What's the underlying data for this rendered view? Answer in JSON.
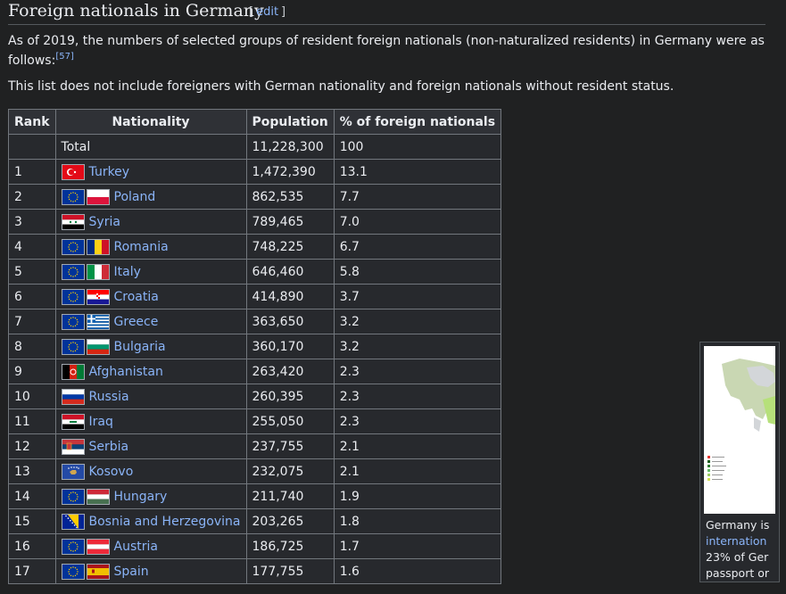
{
  "section": {
    "title": "Foreign nationals in Germany",
    "edit_open": "[",
    "edit_label": "edit",
    "edit_close": "]"
  },
  "intro": {
    "line1": "As of 2019, the numbers of selected groups of resident foreign nationals (non-naturalized residents) in Germany were as",
    "line2": "follows:",
    "ref": "[57]",
    "note": "This list does not include foreigners with German nationality and foreign nationals without resident status."
  },
  "table": {
    "headers": [
      "Rank",
      "Nationality",
      "Population",
      "% of foreign nationals"
    ],
    "total": {
      "rank": "",
      "label": "Total",
      "population": "11,228,300",
      "percent": "100"
    },
    "rows": [
      {
        "rank": "1",
        "country": "Turkey",
        "population": "1,472,390",
        "percent": "13.1",
        "eu": false,
        "flag": "turkey-flag-icon"
      },
      {
        "rank": "2",
        "country": "Poland",
        "population": "862,535",
        "percent": "7.7",
        "eu": true,
        "flag": "poland-flag-icon"
      },
      {
        "rank": "3",
        "country": "Syria",
        "population": "789,465",
        "percent": "7.0",
        "eu": false,
        "flag": "syria-flag-icon"
      },
      {
        "rank": "4",
        "country": "Romania",
        "population": "748,225",
        "percent": "6.7",
        "eu": true,
        "flag": "romania-flag-icon"
      },
      {
        "rank": "5",
        "country": "Italy",
        "population": "646,460",
        "percent": "5.8",
        "eu": true,
        "flag": "italy-flag-icon"
      },
      {
        "rank": "6",
        "country": "Croatia",
        "population": "414,890",
        "percent": "3.7",
        "eu": true,
        "flag": "croatia-flag-icon"
      },
      {
        "rank": "7",
        "country": "Greece",
        "population": "363,650",
        "percent": "3.2",
        "eu": true,
        "flag": "greece-flag-icon"
      },
      {
        "rank": "8",
        "country": "Bulgaria",
        "population": "360,170",
        "percent": "3.2",
        "eu": true,
        "flag": "bulgaria-flag-icon"
      },
      {
        "rank": "9",
        "country": "Afghanistan",
        "population": "263,420",
        "percent": "2.3",
        "eu": false,
        "flag": "afghanistan-flag-icon"
      },
      {
        "rank": "10",
        "country": "Russia",
        "population": "260,395",
        "percent": "2.3",
        "eu": false,
        "flag": "russia-flag-icon"
      },
      {
        "rank": "11",
        "country": "Iraq",
        "population": "255,050",
        "percent": "2.3",
        "eu": false,
        "flag": "iraq-flag-icon"
      },
      {
        "rank": "12",
        "country": "Serbia",
        "population": "237,755",
        "percent": "2.1",
        "eu": false,
        "flag": "serbia-flag-icon"
      },
      {
        "rank": "13",
        "country": "Kosovo",
        "population": "232,075",
        "percent": "2.1",
        "eu": false,
        "flag": "kosovo-flag-icon"
      },
      {
        "rank": "14",
        "country": "Hungary",
        "population": "211,740",
        "percent": "1.9",
        "eu": true,
        "flag": "hungary-flag-icon"
      },
      {
        "rank": "15",
        "country": "Bosnia and Herzegovina",
        "population": "203,265",
        "percent": "1.8",
        "eu": false,
        "flag": "bosnia-flag-icon"
      },
      {
        "rank": "16",
        "country": "Austria",
        "population": "186,725",
        "percent": "1.7",
        "eu": true,
        "flag": "austria-flag-icon"
      },
      {
        "rank": "17",
        "country": "Spain",
        "population": "177,755",
        "percent": "1.6",
        "eu": true,
        "flag": "spain-flag-icon"
      }
    ]
  },
  "thumbnail": {
    "caption_line1": "Germany is",
    "caption_link": "internation",
    "caption_line3": "23% of Ger",
    "caption_line4": "passport or"
  },
  "colors": {
    "background": "#202122",
    "link": "#8ab4f8",
    "border": "#72777d",
    "eu_blue": "#003399",
    "eu_gold": "#ffcc00"
  }
}
